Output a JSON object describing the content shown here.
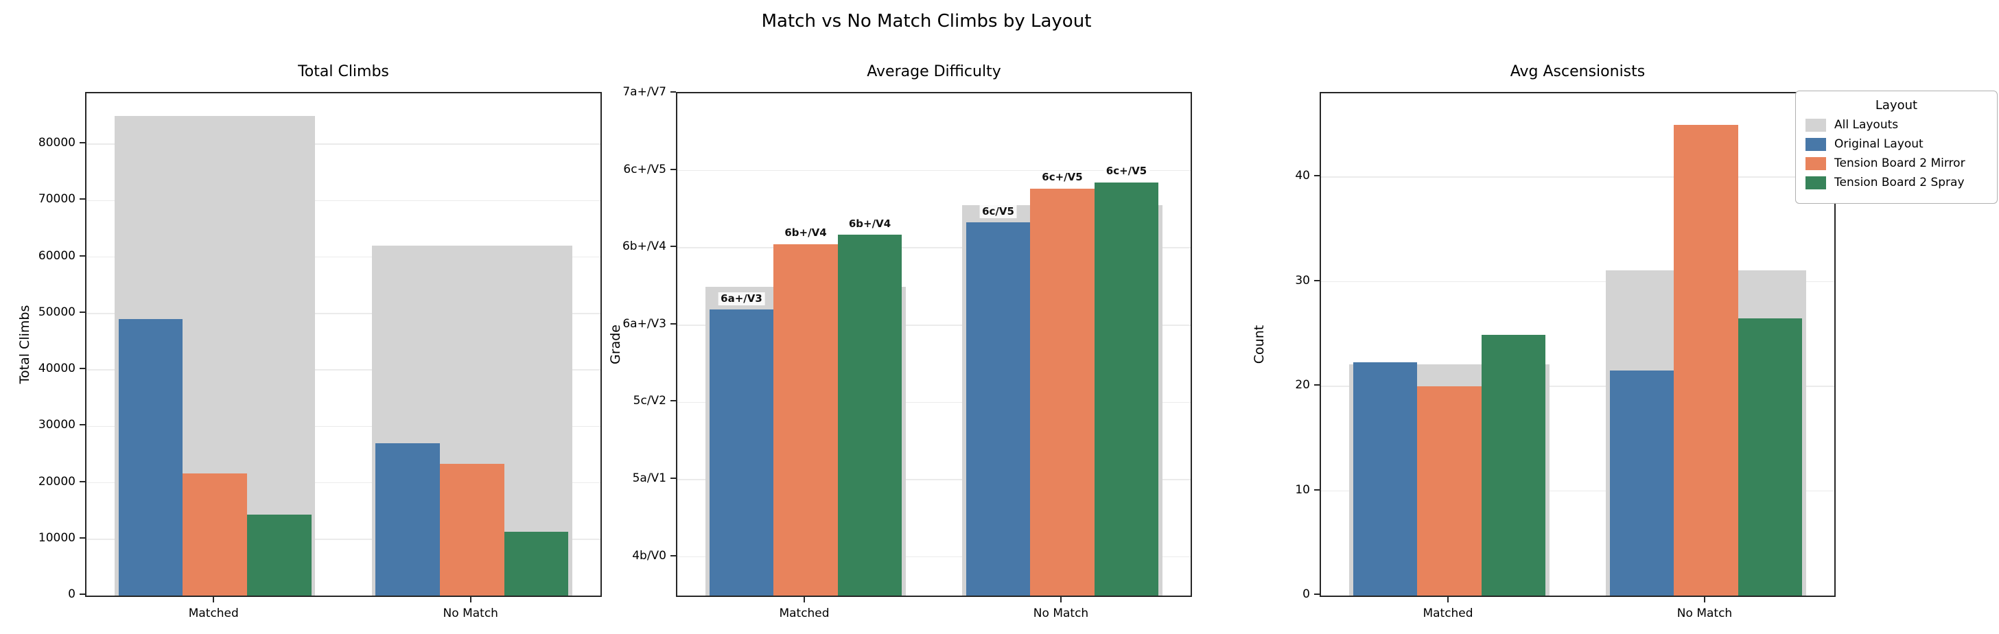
{
  "figure": {
    "title": "Match vs No Match Climbs by Layout"
  },
  "legend": {
    "title": "Layout",
    "entries": [
      {
        "label": "All Layouts",
        "color": "#d3d3d3"
      },
      {
        "label": "Original Layout",
        "color": "#4878a8"
      },
      {
        "label": "Tension Board 2 Mirror",
        "color": "#e8835c"
      },
      {
        "label": "Tension Board 2 Spray",
        "color": "#37835a"
      }
    ]
  },
  "chart_data": [
    {
      "type": "bar",
      "title": "Total Climbs",
      "ylabel": "Total Climbs",
      "categories": [
        "Matched",
        "No Match"
      ],
      "ylim": [
        0,
        89000
      ],
      "grid": true,
      "yticks": [
        {
          "v": 0,
          "label": "0"
        },
        {
          "v": 10000,
          "label": "10000"
        },
        {
          "v": 20000,
          "label": "20000"
        },
        {
          "v": 30000,
          "label": "30000"
        },
        {
          "v": 40000,
          "label": "40000"
        },
        {
          "v": 50000,
          "label": "50000"
        },
        {
          "v": 60000,
          "label": "60000"
        },
        {
          "v": 70000,
          "label": "70000"
        },
        {
          "v": 80000,
          "label": "80000"
        }
      ],
      "series": [
        {
          "name": "All Layouts",
          "background": true,
          "values": [
            85000,
            62000
          ]
        },
        {
          "name": "Original Layout",
          "values": [
            49000,
            27000
          ]
        },
        {
          "name": "Tension Board 2 Mirror",
          "values": [
            21600,
            23300
          ]
        },
        {
          "name": "Tension Board 2 Spray",
          "values": [
            14400,
            11300
          ]
        }
      ]
    },
    {
      "type": "bar",
      "title": "Average Difficulty",
      "ylabel": "Grade",
      "categories": [
        "Matched",
        "No Match"
      ],
      "ylim": [
        -0.5,
        6
      ],
      "grid": true,
      "yticks": [
        {
          "v": 0,
          "label": "4b/V0"
        },
        {
          "v": 1,
          "label": "5a/V1"
        },
        {
          "v": 2,
          "label": "5c/V2"
        },
        {
          "v": 3,
          "label": "6a+/V3"
        },
        {
          "v": 4,
          "label": "6b+/V4"
        },
        {
          "v": 5,
          "label": "6c+/V5"
        },
        {
          "v": 6,
          "label": "7a+/V7"
        }
      ],
      "series": [
        {
          "name": "All Layouts",
          "background": true,
          "values": [
            3.5,
            4.55
          ]
        },
        {
          "name": "Original Layout",
          "values": [
            3.2,
            4.33
          ],
          "bar_labels": [
            "6a+/V3",
            "6c/V5"
          ]
        },
        {
          "name": "Tension Board 2 Mirror",
          "values": [
            4.05,
            4.77
          ],
          "bar_labels": [
            "6b+/V4",
            "6c+/V5"
          ]
        },
        {
          "name": "Tension Board 2 Spray",
          "values": [
            4.17,
            4.85
          ],
          "bar_labels": [
            "6b+/V4",
            "6c+/V5"
          ]
        }
      ]
    },
    {
      "type": "bar",
      "title": "Avg Ascensionists",
      "ylabel": "Count",
      "categories": [
        "Matched",
        "No Match"
      ],
      "ylim": [
        0,
        48
      ],
      "grid": true,
      "yticks": [
        {
          "v": 0,
          "label": "0"
        },
        {
          "v": 10,
          "label": "10"
        },
        {
          "v": 20,
          "label": "20"
        },
        {
          "v": 30,
          "label": "30"
        },
        {
          "v": 40,
          "label": "40"
        }
      ],
      "series": [
        {
          "name": "All Layouts",
          "background": true,
          "values": [
            22.1,
            31.1
          ]
        },
        {
          "name": "Original Layout",
          "values": [
            22.3,
            21.5
          ]
        },
        {
          "name": "Tension Board 2 Mirror",
          "values": [
            20.0,
            45.0
          ]
        },
        {
          "name": "Tension Board 2 Spray",
          "values": [
            24.9,
            26.5
          ]
        }
      ]
    }
  ]
}
